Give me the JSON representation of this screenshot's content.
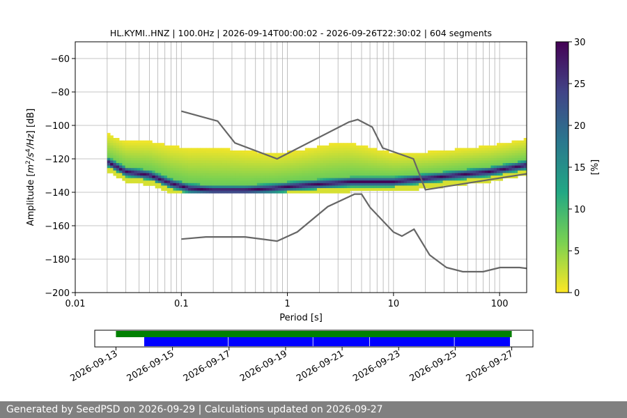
{
  "chart_data": [
    {
      "type": "heatmap",
      "title": "HL.KYMI..HNZ | 100.0Hz | 2026-09-14T00:00:02 - 2026-09-26T22:30:02 | 604 segments",
      "xlabel": "Period [s]",
      "ylabel": "Amplitude [m²/s⁴/Hz] [dB]",
      "xscale": "log",
      "xlim": [
        0.01,
        180
      ],
      "ylim": [
        -200,
        -50
      ],
      "x_ticks": [
        {
          "value": 0.01,
          "label": "0.01"
        },
        {
          "value": 0.1,
          "label": "0.1"
        },
        {
          "value": 1,
          "label": "1"
        },
        {
          "value": 10,
          "label": "10"
        },
        {
          "value": 100,
          "label": "100"
        }
      ],
      "y_ticks": [
        {
          "value": -60,
          "label": "−60"
        },
        {
          "value": -80,
          "label": "−80"
        },
        {
          "value": -100,
          "label": "−100"
        },
        {
          "value": -120,
          "label": "−120"
        },
        {
          "value": -140,
          "label": "−140"
        },
        {
          "value": -160,
          "label": "−160"
        },
        {
          "value": -180,
          "label": "−180"
        },
        {
          "value": -200,
          "label": "−200"
        }
      ],
      "grid": true,
      "colorbar": {
        "label": "[%]",
        "range": [
          0,
          30
        ],
        "ticks": [
          {
            "value": 0,
            "label": "0"
          },
          {
            "value": 5,
            "label": "5"
          },
          {
            "value": 10,
            "label": "10"
          },
          {
            "value": 15,
            "label": "15"
          },
          {
            "value": 20,
            "label": "20"
          },
          {
            "value": 25,
            "label": "25"
          },
          {
            "value": 30,
            "label": "30"
          }
        ],
        "colormap": [
          "#fde725",
          "#7ad151",
          "#22a884",
          "#2a788e",
          "#414487",
          "#440154"
        ]
      },
      "mode_curve": [
        [
          0.02,
          -120
        ],
        [
          0.03,
          -126
        ],
        [
          0.05,
          -128
        ],
        [
          0.08,
          -133
        ],
        [
          0.12,
          -136
        ],
        [
          0.2,
          -137
        ],
        [
          0.4,
          -137
        ],
        [
          0.7,
          -136
        ],
        [
          1.0,
          -135
        ],
        [
          1.5,
          -134
        ],
        [
          2.5,
          -133
        ],
        [
          4.0,
          -132
        ],
        [
          6.0,
          -132
        ],
        [
          10,
          -132
        ],
        [
          20,
          -130
        ],
        [
          40,
          -128
        ],
        [
          80,
          -126
        ],
        [
          180,
          -122
        ]
      ],
      "high_noise_model": [
        [
          0.1,
          -91.5
        ],
        [
          0.22,
          -97.4
        ],
        [
          0.32,
          -110.5
        ],
        [
          0.8,
          -120
        ],
        [
          3.8,
          -98
        ],
        [
          4.6,
          -96.5
        ],
        [
          6.3,
          -101
        ],
        [
          7.9,
          -113.5
        ],
        [
          15.4,
          -120
        ],
        [
          20,
          -138.5
        ],
        [
          354.8,
          -126
        ]
      ],
      "low_noise_model": [
        [
          0.1,
          -168
        ],
        [
          0.17,
          -166.7
        ],
        [
          0.4,
          -166.7
        ],
        [
          0.8,
          -169.2
        ],
        [
          1.24,
          -163.7
        ],
        [
          2.4,
          -148.6
        ],
        [
          4.3,
          -141.1
        ],
        [
          5.0,
          -141.1
        ],
        [
          6.0,
          -149
        ],
        [
          10,
          -163.8
        ],
        [
          12,
          -166.2
        ],
        [
          15.6,
          -162.1
        ],
        [
          21.9,
          -177.5
        ],
        [
          31.6,
          -185
        ],
        [
          45,
          -187.5
        ],
        [
          70,
          -187.5
        ],
        [
          101,
          -185
        ],
        [
          154,
          -185
        ],
        [
          328,
          -187.5
        ]
      ]
    },
    {
      "type": "bar",
      "x_ticks": [
        "2026-09-13",
        "2026-09-15",
        "2026-09-17",
        "2026-09-19",
        "2026-09-21",
        "2026-09-23",
        "2026-09-25",
        "2026-09-27"
      ],
      "xlim": [
        "2026-09-12T06:00",
        "2026-09-27T18:00"
      ],
      "available_data": {
        "color": "#008000",
        "start": "2026-09-13T00:00",
        "end": "2026-09-27T00:00"
      },
      "used_segments": {
        "color": "#0000ff",
        "intervals": [
          [
            "2026-09-14T00:00",
            "2026-09-16T23:00"
          ],
          [
            "2026-09-16T23:00",
            "2026-09-19T23:00"
          ],
          [
            "2026-09-19T23:00",
            "2026-09-21T23:00"
          ],
          [
            "2026-09-21T23:00",
            "2026-09-24T23:00"
          ],
          [
            "2026-09-24T23:00",
            "2026-09-26T22:30"
          ]
        ]
      }
    }
  ],
  "footer": {
    "text": "Generated by SeedPSD on 2026-09-29 | Calculations updated on 2026-09-27"
  }
}
